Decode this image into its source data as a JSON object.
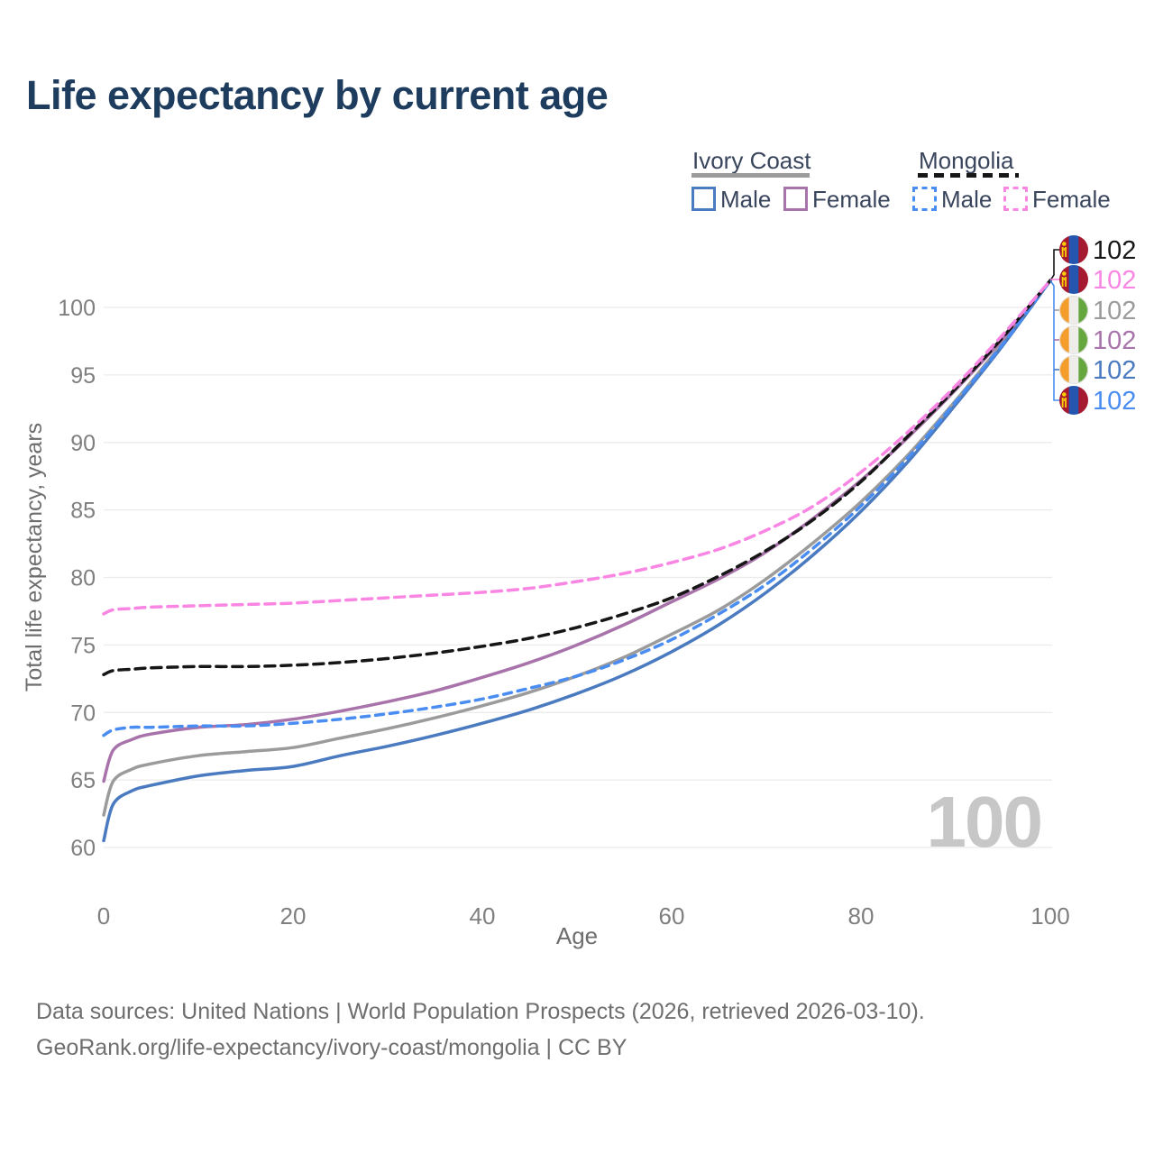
{
  "title": "Life expectancy by current age",
  "watermark_age": "100",
  "legend": {
    "groups": [
      {
        "name": "Ivory Coast",
        "line_style": "solid",
        "line_color": "#9b9b9b",
        "items": [
          {
            "label": "Male",
            "color": "#4a7abf",
            "dashed": false
          },
          {
            "label": "Female",
            "color": "#a873aa",
            "dashed": false
          }
        ]
      },
      {
        "name": "Mongolia",
        "line_style": "dashed",
        "line_color": "#161616",
        "items": [
          {
            "label": "Male",
            "color": "#4a8df2",
            "dashed": true
          },
          {
            "label": "Female",
            "color": "#fa86e4",
            "dashed": true
          }
        ]
      }
    ]
  },
  "chart_data": {
    "type": "line",
    "title": "Life expectancy by current age",
    "xlabel": "Age",
    "ylabel": "Total life expectancy, years",
    "xlim": [
      0,
      100
    ],
    "ylim": [
      60,
      102
    ],
    "xticks": [
      0,
      20,
      40,
      60,
      80,
      100
    ],
    "yticks": [
      60,
      65,
      70,
      75,
      80,
      85,
      90,
      95,
      100
    ],
    "grid": "horizontal",
    "legend_position": "top-right",
    "ages": [
      0,
      1,
      3,
      5,
      10,
      15,
      20,
      25,
      30,
      35,
      40,
      45,
      50,
      55,
      60,
      65,
      70,
      75,
      80,
      85,
      90,
      95,
      100
    ],
    "series": [
      {
        "name": "Ivory Coast",
        "country": "Ivory Coast",
        "sex": "All",
        "color": "#9b9b9b",
        "dashed": false,
        "flag": "ivory-coast",
        "end_value": 102,
        "label_row": 2,
        "values": [
          62.4,
          64.9,
          65.8,
          66.2,
          66.8,
          67.1,
          67.4,
          68.1,
          68.8,
          69.6,
          70.5,
          71.5,
          72.7,
          74.1,
          75.8,
          77.6,
          79.9,
          82.6,
          85.6,
          89.1,
          93.1,
          97.4,
          102
        ]
      },
      {
        "name": "Ivory Coast Male",
        "country": "Ivory Coast",
        "sex": "Male",
        "color": "#4a7abf",
        "dashed": false,
        "flag": "ivory-coast",
        "end_value": 102,
        "label_row": 4,
        "values": [
          60.5,
          63.2,
          64.2,
          64.6,
          65.3,
          65.7,
          66.0,
          66.8,
          67.5,
          68.3,
          69.2,
          70.2,
          71.4,
          72.8,
          74.5,
          76.5,
          78.9,
          81.7,
          84.9,
          88.6,
          92.8,
          97.2,
          102
        ]
      },
      {
        "name": "Ivory Coast Female",
        "country": "Ivory Coast",
        "sex": "Female",
        "color": "#a873aa",
        "dashed": false,
        "flag": "ivory-coast",
        "end_value": 102,
        "label_row": 3,
        "values": [
          64.9,
          67.2,
          68.0,
          68.4,
          68.9,
          69.1,
          69.5,
          70.1,
          70.8,
          71.6,
          72.6,
          73.7,
          75.0,
          76.5,
          78.2,
          79.9,
          81.9,
          84.4,
          87.2,
          90.4,
          93.9,
          97.7,
          102
        ]
      },
      {
        "name": "Mongolia Male",
        "country": "Mongolia",
        "sex": "Male",
        "color": "#4a8df2",
        "dashed": true,
        "flag": "mongolia",
        "end_value": 102,
        "label_row": 5,
        "values": [
          68.3,
          68.7,
          68.9,
          68.9,
          69.0,
          69.0,
          69.2,
          69.5,
          69.9,
          70.4,
          71.0,
          71.8,
          72.7,
          73.9,
          75.4,
          77.3,
          79.5,
          82.2,
          85.3,
          88.9,
          93.0,
          97.3,
          102
        ]
      },
      {
        "name": "Mongolia",
        "country": "Mongolia",
        "sex": "All",
        "color": "#161616",
        "dashed": true,
        "flag": "mongolia",
        "end_value": 102,
        "label_row": 0,
        "values": [
          72.8,
          73.1,
          73.2,
          73.3,
          73.4,
          73.4,
          73.5,
          73.7,
          74.0,
          74.4,
          74.9,
          75.5,
          76.3,
          77.3,
          78.5,
          80.1,
          82.0,
          84.3,
          87.1,
          90.5,
          94.0,
          97.8,
          102
        ]
      },
      {
        "name": "Mongolia Female",
        "country": "Mongolia",
        "sex": "Female",
        "color": "#fa86e4",
        "dashed": true,
        "flag": "mongolia",
        "end_value": 102,
        "label_row": 1,
        "values": [
          77.3,
          77.6,
          77.7,
          77.8,
          77.9,
          78.0,
          78.1,
          78.3,
          78.5,
          78.7,
          78.9,
          79.2,
          79.7,
          80.3,
          81.1,
          82.1,
          83.5,
          85.3,
          87.8,
          90.8,
          94.2,
          98.0,
          102
        ]
      }
    ],
    "flag_colors": {
      "mongolia": {
        "left": "#a51931",
        "middle": "#2456b0",
        "right": "#a51931",
        "symbol": "#f9cf02"
      },
      "ivory-coast": {
        "left": "#f49d2c",
        "middle": "#eeedea",
        "right": "#66a63e"
      }
    }
  },
  "footer": {
    "line1": "Data sources: United Nations | World Population Prospects (2026, retrieved 2026-03-10).",
    "line2": "GeoRank.org/life-expectancy/ivory-coast/mongolia | CC BY"
  }
}
